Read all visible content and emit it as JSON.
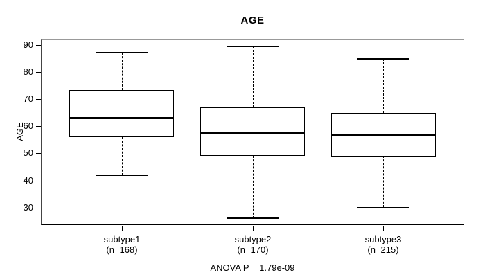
{
  "chart_data": {
    "type": "boxplot",
    "title": "AGE",
    "ylabel": "AGE",
    "caption": "ANOVA P = 1.79e-09",
    "categories": [
      "subtype1",
      "subtype2",
      "subtype3"
    ],
    "groups": [
      {
        "label": "subtype1",
        "n_label": "(n=168)",
        "whisker_low": 42,
        "q1": 56,
        "median": 63.3,
        "q3": 73.5,
        "whisker_high": 87.3
      },
      {
        "label": "subtype2",
        "n_label": "(n=170)",
        "whisker_low": 26,
        "q1": 49,
        "median": 57.5,
        "q3": 67,
        "whisker_high": 89.5
      },
      {
        "label": "subtype3",
        "n_label": "(n=215)",
        "whisker_low": 30,
        "q1": 49,
        "median": 57,
        "q3": 65,
        "whisker_high": 85
      }
    ],
    "yticks": [
      30,
      40,
      50,
      60,
      70,
      80,
      90
    ],
    "ylim": [
      23.5,
      92.1
    ],
    "xlim": [
      0.38,
      3.62
    ],
    "positions": [
      1,
      2,
      3
    ],
    "box_width": 0.8,
    "cap_width": 0.4,
    "grid": false,
    "legend": "none",
    "colors": {
      "line": "#000000",
      "box_fill": "#ffffff",
      "frame_top": "#999999"
    }
  }
}
